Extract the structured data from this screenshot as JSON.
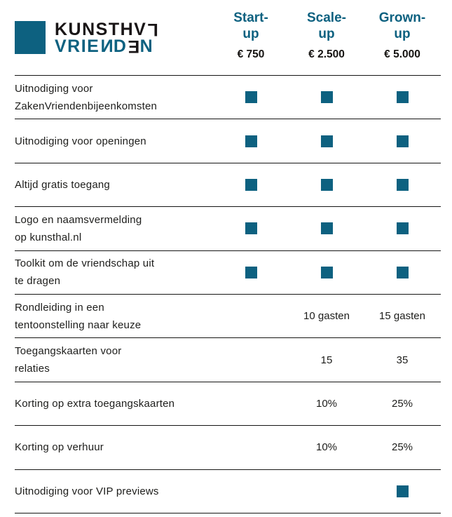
{
  "colors": {
    "teal": "#0d6180",
    "text": "#1d1d1b",
    "line": "#161615"
  },
  "logo": {
    "name": "Kunsthal Vrienden",
    "line1": {
      "part1": "KUNSTH",
      "part2": "V",
      "part3_flipped": "L"
    },
    "line2": {
      "part1": "VRIE",
      "part2_mirrored": "N",
      "part3": "D",
      "part4_flipped": "E",
      "part5": "N"
    }
  },
  "columns": [
    {
      "id": "start-up",
      "name_line1": "Start-",
      "name_line2": "up",
      "price": "€ 750"
    },
    {
      "id": "scale-up",
      "name_line1": "Scale-",
      "name_line2": "up",
      "price": "€ 2.500"
    },
    {
      "id": "grown-up",
      "name_line1": "Grown-",
      "name_line2": "up",
      "price": "€ 5.000"
    }
  ],
  "rows": [
    {
      "label_line1": "Uitnodiging voor",
      "label_line2": "ZakenVriendenbijeenkomsten",
      "values": [
        "square",
        "square",
        "square"
      ]
    },
    {
      "label_line1": "Uitnodiging voor openingen",
      "label_line2": "",
      "values": [
        "square",
        "square",
        "square"
      ]
    },
    {
      "label_line1": "Altijd gratis toegang",
      "label_line2": "",
      "values": [
        "square",
        "square",
        "square"
      ]
    },
    {
      "label_line1": "Logo en naamsvermelding",
      "label_line2": "op kunsthal.nl",
      "values": [
        "square",
        "square",
        "square"
      ]
    },
    {
      "label_line1": "Toolkit om de vriendschap uit",
      "label_line2": "te dragen",
      "values": [
        "square",
        "square",
        "square"
      ]
    },
    {
      "label_line1": "Rondleiding in een",
      "label_line2": "tentoonstelling naar keuze",
      "values": [
        "",
        "10 gasten",
        "15 gasten"
      ]
    },
    {
      "label_line1": "Toegangskaarten voor",
      "label_line2": "relaties",
      "values": [
        "",
        "15",
        "35"
      ]
    },
    {
      "label_line1": "Korting op extra toegangskaarten",
      "label_line2": "",
      "values": [
        "",
        "10%",
        "25%"
      ]
    },
    {
      "label_line1": "Korting op verhuur",
      "label_line2": "",
      "values": [
        "",
        "10%",
        "25%"
      ]
    },
    {
      "label_line1": "Uitnodiging voor VIP previews",
      "label_line2": "",
      "values": [
        "",
        "",
        "square"
      ]
    }
  ]
}
